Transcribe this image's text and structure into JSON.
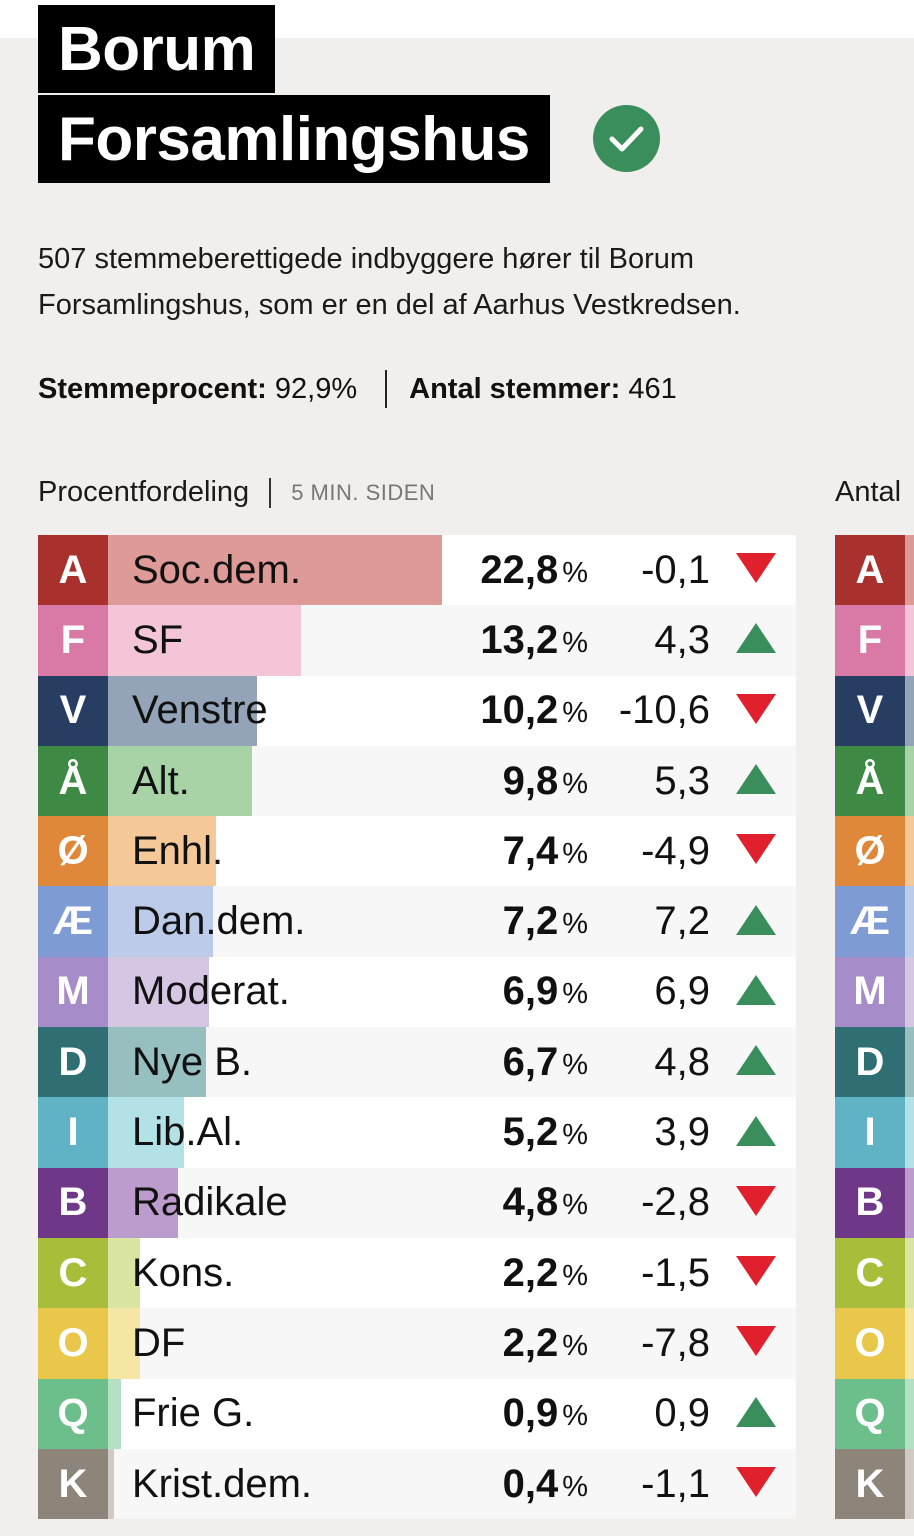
{
  "title": {
    "line1": "Borum",
    "line2": "Forsamlingshus"
  },
  "verified_icon": "check-circle-icon",
  "description": "507 stemmeberettigede indbyggere hører til Borum Forsamlingshus, som er en del af Aarhus Vestkredsen.",
  "stats": {
    "turnout_label": "Stemmeprocent:",
    "turnout_value": "92,9%",
    "votes_label": "Antal stemmer:",
    "votes_value": "461"
  },
  "section": {
    "label": "Procentfordeling",
    "updated": "5 MIN. SIDEN",
    "next_label": "Antal"
  },
  "colors": {
    "up": "#3a8e5c",
    "down": "#e0202c"
  },
  "parties": [
    {
      "letter": "A",
      "name": "Soc.dem.",
      "pct": "22,8",
      "pct_value": 22.8,
      "change": "-0,1",
      "direction": "down",
      "color": "#a8302d",
      "light": "#de9a96"
    },
    {
      "letter": "F",
      "name": "SF",
      "pct": "13,2",
      "pct_value": 13.2,
      "change": "4,3",
      "direction": "up",
      "color": "#d97aa6",
      "light": "#f4c4d9"
    },
    {
      "letter": "V",
      "name": "Venstre",
      "pct": "10,2",
      "pct_value": 10.2,
      "change": "-10,6",
      "direction": "down",
      "color": "#283d62",
      "light": "#93a3b8"
    },
    {
      "letter": "Å",
      "name": "Alt.",
      "pct": "9,8",
      "pct_value": 9.8,
      "change": "5,3",
      "direction": "up",
      "color": "#3e8a45",
      "light": "#a7d3a6"
    },
    {
      "letter": "Ø",
      "name": "Enhl.",
      "pct": "7,4",
      "pct_value": 7.4,
      "change": "-4,9",
      "direction": "down",
      "color": "#e0883a",
      "light": "#f4c897"
    },
    {
      "letter": "Æ",
      "name": "Dan.dem.",
      "pct": "7,2",
      "pct_value": 7.2,
      "change": "7,2",
      "direction": "up",
      "color": "#7f9bd3",
      "light": "#bccbe9"
    },
    {
      "letter": "M",
      "name": "Moderat.",
      "pct": "6,9",
      "pct_value": 6.9,
      "change": "6,9",
      "direction": "up",
      "color": "#a68cc9",
      "light": "#d5c6e4"
    },
    {
      "letter": "D",
      "name": "Nye B.",
      "pct": "6,7",
      "pct_value": 6.7,
      "change": "4,8",
      "direction": "up",
      "color": "#2f6e72",
      "light": "#98bfc0"
    },
    {
      "letter": "I",
      "name": "Lib.Al.",
      "pct": "5,2",
      "pct_value": 5.2,
      "change": "3,9",
      "direction": "up",
      "color": "#5fb3c4",
      "light": "#b2e1e6"
    },
    {
      "letter": "B",
      "name": "Radikale",
      "pct": "4,8",
      "pct_value": 4.8,
      "change": "-2,8",
      "direction": "down",
      "color": "#6f3787",
      "light": "#bc9ccc"
    },
    {
      "letter": "C",
      "name": "Kons.",
      "pct": "2,2",
      "pct_value": 2.2,
      "change": "-1,5",
      "direction": "down",
      "color": "#a8bd3a",
      "light": "#dbe5a2"
    },
    {
      "letter": "O",
      "name": "DF",
      "pct": "2,2",
      "pct_value": 2.2,
      "change": "-7,8",
      "direction": "down",
      "color": "#e8c74a",
      "light": "#f5e6a4"
    },
    {
      "letter": "Q",
      "name": "Frie G.",
      "pct": "0,9",
      "pct_value": 0.9,
      "change": "0,9",
      "direction": "up",
      "color": "#6cbf8a",
      "light": "#b4e0c3"
    },
    {
      "letter": "K",
      "name": "Krist.dem.",
      "pct": "0,4",
      "pct_value": 0.4,
      "change": "-1,1",
      "direction": "down",
      "color": "#8d857a",
      "light": "#cfcac3"
    }
  ],
  "pct_unit": "%"
}
